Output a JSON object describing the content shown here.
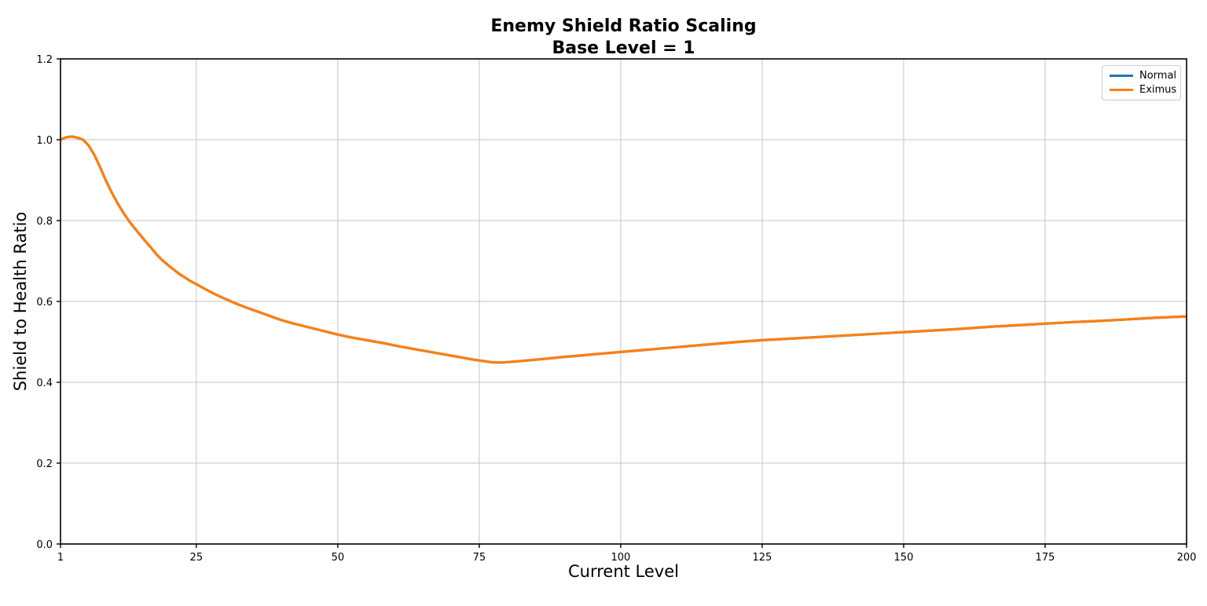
{
  "chart_data": {
    "type": "line",
    "title_line1": "Enemy Shield Ratio Scaling",
    "title_line2": "Base Level = 1",
    "xlabel": "Current Level",
    "ylabel": "Shield to Health Ratio",
    "xlim": [
      1,
      200
    ],
    "ylim": [
      0.0,
      1.2
    ],
    "x_ticks": [
      1,
      25,
      50,
      75,
      100,
      125,
      150,
      175,
      200
    ],
    "y_ticks": [
      "0.0",
      "0.2",
      "0.4",
      "0.6",
      "0.8",
      "1.0",
      "1.2"
    ],
    "grid": true,
    "legend_position": "upper right",
    "grid_color": "#c4c4c4",
    "spine_color": "#000000",
    "x": [
      1,
      2,
      3,
      4,
      5,
      6,
      7,
      8,
      9,
      10,
      11,
      12,
      13,
      14,
      15,
      16,
      17,
      18,
      19,
      20,
      22,
      24,
      25,
      26,
      28,
      30,
      32,
      34,
      36,
      38,
      40,
      42,
      44,
      46,
      48,
      50,
      52,
      54,
      56,
      58,
      60,
      62,
      64,
      66,
      68,
      70,
      72,
      74,
      75,
      76,
      77,
      78,
      79,
      80,
      82,
      85,
      88,
      90,
      92,
      95,
      100,
      105,
      110,
      115,
      120,
      125,
      130,
      135,
      140,
      145,
      150,
      155,
      160,
      165,
      170,
      175,
      180,
      185,
      190,
      195,
      200
    ],
    "series": [
      {
        "name": "Normal",
        "color": "#1f77b4",
        "values": [
          1.0,
          1.006,
          1.008,
          1.005,
          1.0,
          0.985,
          0.962,
          0.932,
          0.9,
          0.871,
          0.845,
          0.822,
          0.801,
          0.783,
          0.766,
          0.749,
          0.733,
          0.716,
          0.702,
          0.69,
          0.668,
          0.65,
          0.643,
          0.635,
          0.62,
          0.607,
          0.595,
          0.584,
          0.574,
          0.564,
          0.554,
          0.546,
          0.539,
          0.532,
          0.525,
          0.518,
          0.512,
          0.507,
          0.502,
          0.497,
          0.491,
          0.486,
          0.481,
          0.476,
          0.471,
          0.466,
          0.461,
          0.456,
          0.454,
          0.452,
          0.45,
          0.449,
          0.449,
          0.45,
          0.452,
          0.456,
          0.46,
          0.463,
          0.465,
          0.469,
          0.475,
          0.481,
          0.487,
          0.493,
          0.499,
          0.504,
          0.508,
          0.512,
          0.516,
          0.52,
          0.524,
          0.528,
          0.532,
          0.537,
          0.541,
          0.545,
          0.549,
          0.552,
          0.556,
          0.56,
          0.563
        ]
      },
      {
        "name": "Eximus",
        "color": "#ff7f0e",
        "values": [
          1.0,
          1.006,
          1.008,
          1.005,
          1.0,
          0.985,
          0.962,
          0.932,
          0.9,
          0.871,
          0.845,
          0.822,
          0.801,
          0.783,
          0.766,
          0.749,
          0.733,
          0.716,
          0.702,
          0.69,
          0.668,
          0.65,
          0.643,
          0.635,
          0.62,
          0.607,
          0.595,
          0.584,
          0.574,
          0.564,
          0.554,
          0.546,
          0.539,
          0.532,
          0.525,
          0.518,
          0.512,
          0.507,
          0.502,
          0.497,
          0.491,
          0.486,
          0.481,
          0.476,
          0.471,
          0.466,
          0.461,
          0.456,
          0.454,
          0.452,
          0.45,
          0.449,
          0.449,
          0.45,
          0.452,
          0.456,
          0.46,
          0.463,
          0.465,
          0.469,
          0.475,
          0.481,
          0.487,
          0.493,
          0.499,
          0.504,
          0.508,
          0.512,
          0.516,
          0.52,
          0.524,
          0.528,
          0.532,
          0.537,
          0.541,
          0.545,
          0.549,
          0.552,
          0.556,
          0.56,
          0.563
        ]
      }
    ]
  }
}
